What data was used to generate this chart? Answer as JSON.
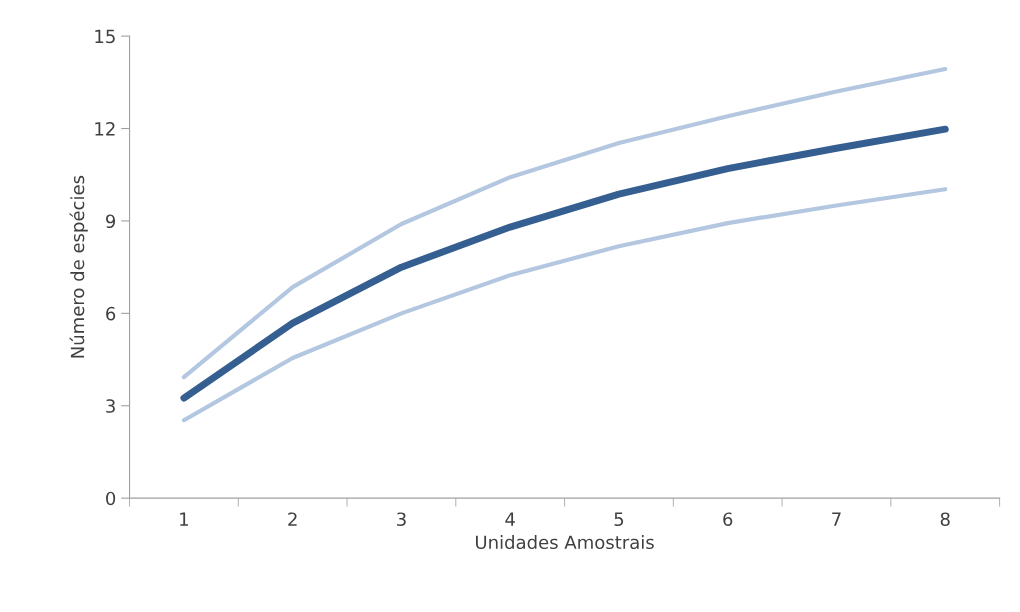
{
  "chart_data": {
    "type": "line",
    "xlabel": "Unidades Amostrais",
    "ylabel": "Número de espécies",
    "categories": [
      "1",
      "2",
      "3",
      "4",
      "5",
      "6",
      "7",
      "8"
    ],
    "series": [
      {
        "color": "#b4c7e0",
        "values": [
          3.93,
          6.85,
          8.9,
          10.42,
          11.53,
          12.4,
          13.2,
          13.93
        ]
      },
      {
        "color": "#b4c7e0",
        "values": [
          2.53,
          4.55,
          6.0,
          7.24,
          8.18,
          8.93,
          9.5,
          10.03
        ]
      },
      {
        "color": "#365f91",
        "values": [
          3.25,
          5.68,
          7.5,
          8.8,
          9.87,
          10.7,
          11.36,
          11.98
        ]
      }
    ],
    "ylim": [
      0,
      15
    ],
    "yticks": [
      0,
      3,
      6,
      9,
      12,
      15
    ],
    "grid": false,
    "legend": false
  }
}
